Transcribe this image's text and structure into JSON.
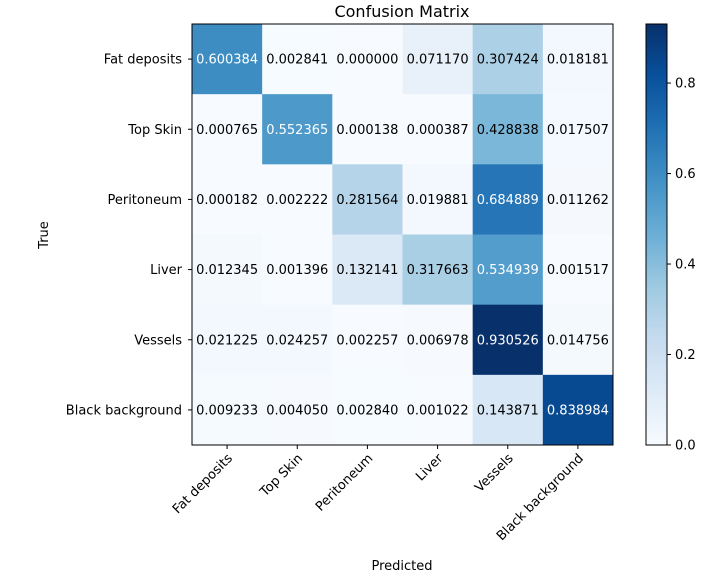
{
  "chart_data": {
    "type": "heatmap",
    "title": "Confusion Matrix",
    "xlabel": "Predicted",
    "ylabel": "True",
    "x_categories": [
      "Fat deposits",
      "Top Skin",
      "Peritoneum",
      "Liver",
      "Vessels",
      "Black background"
    ],
    "y_categories": [
      "Fat deposits",
      "Top Skin",
      "Peritoneum",
      "Liver",
      "Vessels",
      "Black background"
    ],
    "values": [
      [
        0.600384,
        0.002841,
        0.0,
        0.07117,
        0.307424,
        0.018181
      ],
      [
        0.000765,
        0.552365,
        0.000138,
        0.000387,
        0.428838,
        0.017507
      ],
      [
        0.000182,
        0.002222,
        0.281564,
        0.019881,
        0.684889,
        0.011262
      ],
      [
        0.012345,
        0.001396,
        0.132141,
        0.317663,
        0.534939,
        0.001517
      ],
      [
        0.021225,
        0.024257,
        0.002257,
        0.006978,
        0.930526,
        0.014756
      ],
      [
        0.009233,
        0.00405,
        0.00284,
        0.001022,
        0.143871,
        0.838984
      ]
    ],
    "value_labels": [
      [
        "0.600384",
        "0.002841",
        "0.000000",
        "0.071170",
        "0.307424",
        "0.018181"
      ],
      [
        "0.000765",
        "0.552365",
        "0.000138",
        "0.000387",
        "0.428838",
        "0.017507"
      ],
      [
        "0.000182",
        "0.002222",
        "0.281564",
        "0.019881",
        "0.684889",
        "0.011262"
      ],
      [
        "0.012345",
        "0.001396",
        "0.132141",
        "0.317663",
        "0.534939",
        "0.001517"
      ],
      [
        "0.021225",
        "0.024257",
        "0.002257",
        "0.006978",
        "0.930526",
        "0.014756"
      ],
      [
        "0.009233",
        "0.004050",
        "0.002840",
        "0.001022",
        "0.143871",
        "0.838984"
      ]
    ],
    "colormap": "Blues",
    "colorbar": {
      "range": [
        0,
        0.930526
      ],
      "ticks": [
        0.0,
        0.2,
        0.4,
        0.6,
        0.8
      ],
      "tick_labels": [
        "0.0",
        "0.2",
        "0.4",
        "0.6",
        "0.8"
      ]
    },
    "text_color_light": "#ffffff",
    "text_color_dark": "#000000",
    "grid": false
  }
}
